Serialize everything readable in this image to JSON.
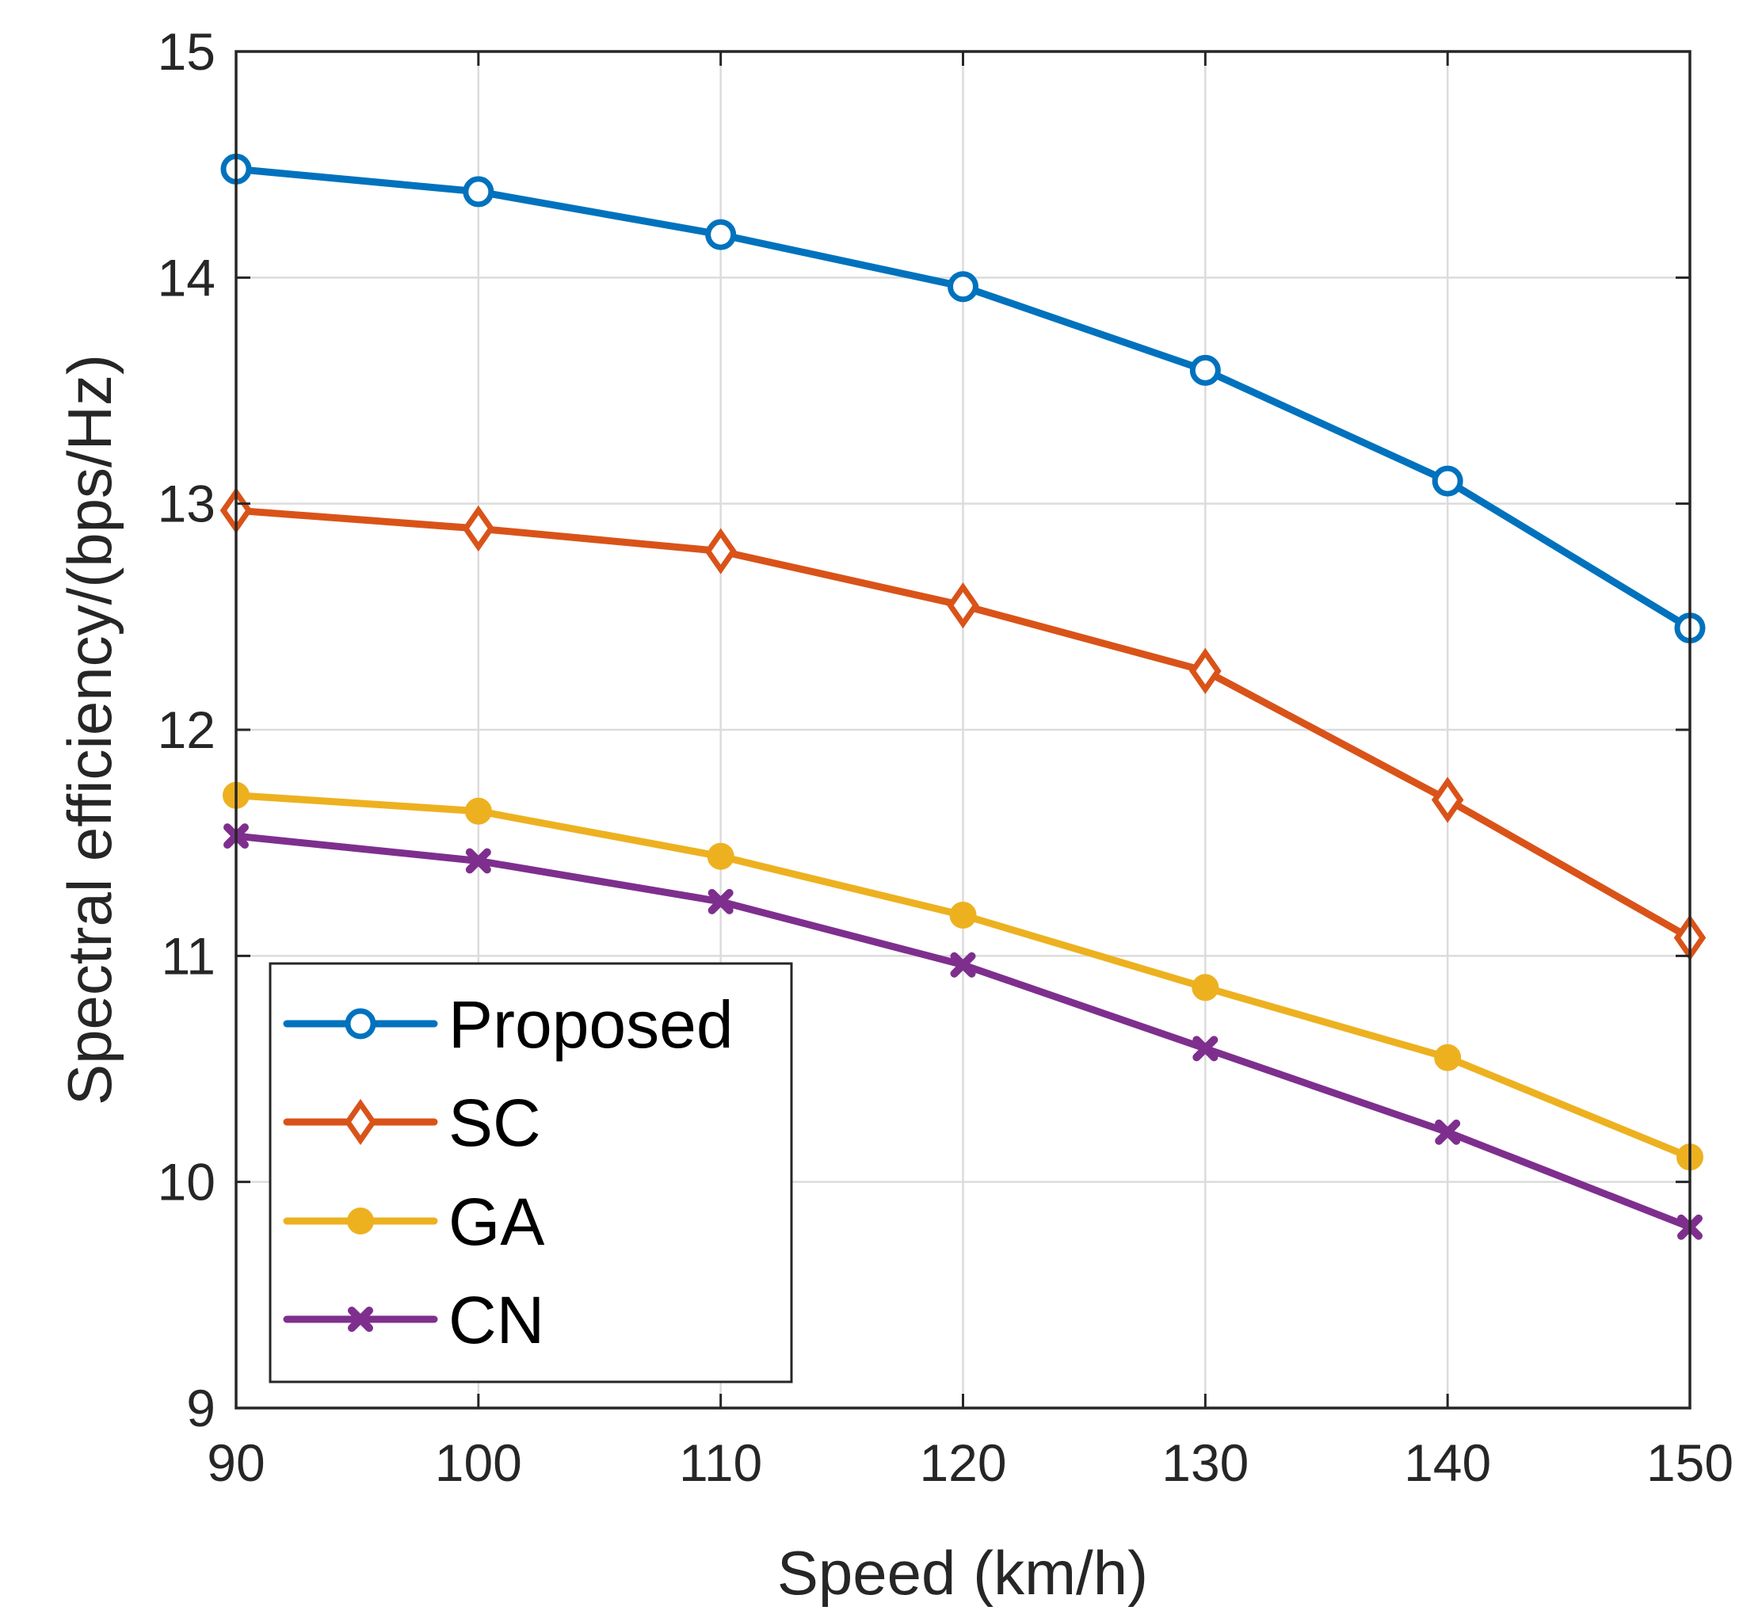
{
  "chart_data": {
    "type": "line",
    "title": "",
    "xlabel": "Speed (km/h)",
    "ylabel": "Spectral efficiency/(bps/Hz)",
    "x": [
      90,
      100,
      110,
      120,
      130,
      140,
      150
    ],
    "xlim": [
      90,
      150
    ],
    "ylim": [
      9,
      15
    ],
    "xticks": [
      "90",
      "100",
      "110",
      "120",
      "130",
      "140",
      "150"
    ],
    "yticks": [
      "9",
      "10",
      "11",
      "12",
      "13",
      "14",
      "15"
    ],
    "grid": true,
    "legend_location": "bottom-left",
    "series": [
      {
        "name": "Proposed",
        "color": "#0072BD",
        "marker": "circle",
        "values": [
          14.48,
          14.38,
          14.19,
          13.96,
          13.59,
          13.1,
          12.45
        ]
      },
      {
        "name": "SC",
        "color": "#D95319",
        "marker": "diamond",
        "values": [
          12.97,
          12.89,
          12.79,
          12.55,
          12.26,
          11.69,
          11.08
        ]
      },
      {
        "name": "GA",
        "color": "#EDB120",
        "marker": "dot",
        "values": [
          11.71,
          11.64,
          11.44,
          11.18,
          10.86,
          10.55,
          10.11
        ]
      },
      {
        "name": "CN",
        "color": "#7E2F8E",
        "marker": "cross",
        "values": [
          11.53,
          11.42,
          11.24,
          10.96,
          10.59,
          10.22,
          9.8
        ]
      }
    ]
  }
}
